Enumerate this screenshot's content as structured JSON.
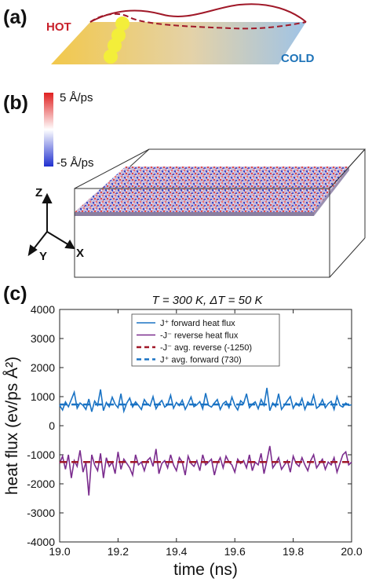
{
  "panels": {
    "a": {
      "label": "(a)",
      "hot_label": "HOT",
      "cold_label": "COLD",
      "colors": {
        "hot": "#c8202a",
        "cold": "#1e73b8",
        "gradient_start": "#f2c84b",
        "gradient_end": "#9fc3e6",
        "wave": "#a01828",
        "atoms": "#f3ee3a"
      }
    },
    "b": {
      "label": "(b)",
      "colorbar_max": "5 Å/ps",
      "colorbar_min": "-5 Å/ps",
      "axis_z": "Z",
      "axis_y": "Y",
      "axis_x": "X",
      "colors": {
        "positive": "#e02020",
        "negative": "#2030d0",
        "neutral": "#ffffff"
      }
    },
    "c": {
      "label": "(c)"
    }
  },
  "chart_data": {
    "type": "line",
    "title": "T = 300 K, ΔT = 50 K",
    "xlabel": "time (ns)",
    "ylabel": "heat flux (ev/ps Å²)",
    "xlim": [
      19.0,
      20.0
    ],
    "ylim": [
      -4000,
      4000
    ],
    "x_ticks": [
      "19.0",
      "19.2",
      "19.4",
      "19.6",
      "19.8",
      "20.0"
    ],
    "y_ticks": [
      "4000",
      "3000",
      "2000",
      "1000",
      "0",
      "-1000",
      "-2000",
      "-3000",
      "-4000"
    ],
    "legend_position": "top-right",
    "series": [
      {
        "name": "J⁺ forward heat flux",
        "color": "#1a73c4",
        "style": "solid",
        "x_start": 19.0,
        "x_step": 0.01,
        "values": [
          700,
          540,
          820,
          650,
          900,
          1150,
          600,
          780,
          700,
          560,
          920,
          480,
          850,
          700,
          1250,
          520,
          800,
          650,
          980,
          740,
          620,
          1100,
          500,
          780,
          950,
          640,
          820,
          700,
          560,
          900,
          750,
          680,
          1000,
          580,
          760,
          870,
          640,
          720,
          1050,
          600,
          800,
          690,
          880,
          560,
          760,
          990,
          650,
          720,
          830,
          580,
          1120,
          700,
          640,
          780,
          900,
          560,
          760,
          840,
          620,
          980,
          700,
          540,
          860,
          760,
          1100,
          620,
          740,
          820,
          580,
          900,
          700,
          1300,
          520,
          780,
          660,
          1100,
          560,
          700,
          860,
          1000,
          600,
          780,
          680,
          940,
          560,
          820,
          720,
          1050,
          600,
          680,
          900,
          620,
          760,
          840,
          560,
          1000,
          700,
          640,
          780,
          700,
          720
        ]
      },
      {
        "name": "-J⁻ reverse heat flux",
        "color": "#7b2d8e",
        "style": "solid",
        "x_start": 19.0,
        "x_step": 0.01,
        "values": [
          -1300,
          -1050,
          -1500,
          -1000,
          -1800,
          -1200,
          -1400,
          -850,
          -1600,
          -1250,
          -2400,
          -1000,
          -1350,
          -1550,
          -950,
          -1800,
          -1100,
          -1400,
          -1250,
          -1650,
          -900,
          -1500,
          -1150,
          -1300,
          -1450,
          -1700,
          -1000,
          -1350,
          -1250,
          -1550,
          -1200,
          -1100,
          -1400,
          -800,
          -1650,
          -1300,
          -1200,
          -1450,
          -1000,
          -1350,
          -1550,
          -1100,
          -1250,
          -1700,
          -1050,
          -1300,
          -1400,
          -1200,
          -1550,
          -1000,
          -1350,
          -1250,
          -1150,
          -1700,
          -1300,
          -1100,
          -1450,
          -1050,
          -1250,
          -1350,
          -1600,
          -1150,
          -1300,
          -1200,
          -1450,
          -1000,
          -1550,
          -1250,
          -1350,
          -950,
          -1650,
          -1200,
          -700,
          -1450,
          -1300,
          -1100,
          -1500,
          -1350,
          -1200,
          -1600,
          -1050,
          -1300,
          -1400,
          -1100,
          -1350,
          -1550,
          -1200,
          -1000,
          -1450,
          -1300,
          -1150,
          -1500,
          -1250,
          -1350,
          -1100,
          -1600,
          -1300,
          -1000,
          -900,
          -1350,
          -1250
        ]
      },
      {
        "name": "-J⁻ avg. reverse (-1250)",
        "color": "#a01828",
        "style": "dashed",
        "constant": -1250
      },
      {
        "name": "J⁺ avg. forward (730)",
        "color": "#1a73c4",
        "style": "dashed",
        "constant": 730
      }
    ]
  }
}
